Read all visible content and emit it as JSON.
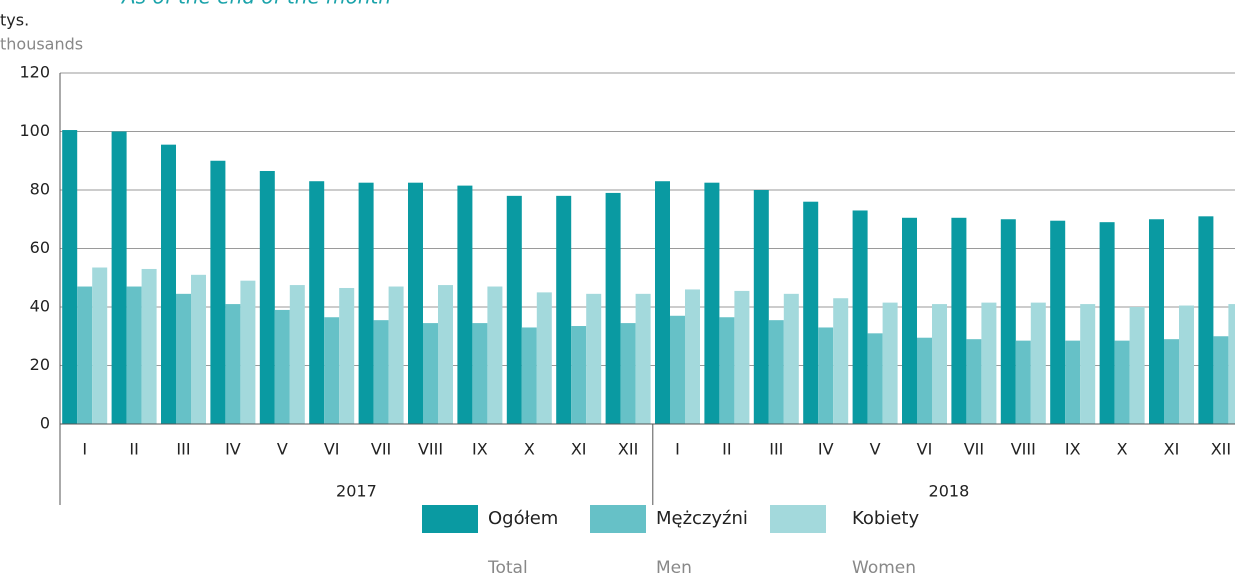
{
  "chart_data": {
    "type": "bar",
    "subtitle": "As of the end of the month",
    "y_label": "tys.",
    "y_label_en": "thousands",
    "categories": [
      "I",
      "II",
      "III",
      "IV",
      "V",
      "VI",
      "VII",
      "VIII",
      "IX",
      "X",
      "XI",
      "XII",
      "I",
      "II",
      "III",
      "IV",
      "V",
      "VI",
      "VII",
      "VIII",
      "IX",
      "X",
      "XI",
      "XII"
    ],
    "year_groups": [
      "2017",
      "2018"
    ],
    "series": [
      {
        "name": "Ogółem",
        "name_en": "Total",
        "color": "#0a9aa2",
        "values": [
          100.5,
          100,
          95.5,
          90,
          86.5,
          83,
          82.5,
          82.5,
          81.5,
          78,
          78,
          79,
          83,
          82.5,
          80,
          76,
          73,
          70.5,
          70.5,
          70,
          69.5,
          69,
          70,
          71
        ]
      },
      {
        "name": "Mężczyźni",
        "name_en": "Men",
        "color": "#66c1c7",
        "values": [
          47,
          47,
          44.5,
          41,
          39,
          36.5,
          35.5,
          34.5,
          34.5,
          33,
          33.5,
          34.5,
          37,
          36.5,
          35.5,
          33,
          31,
          29.5,
          29,
          28.5,
          28.5,
          28.5,
          29,
          30
        ]
      },
      {
        "name": "Kobiety",
        "name_en": "Women",
        "color": "#a3d9dc",
        "values": [
          53.5,
          53,
          51,
          49,
          47.5,
          46.5,
          47,
          47.5,
          47,
          45,
          44.5,
          44.5,
          46,
          45.5,
          44.5,
          43,
          41.5,
          41,
          41.5,
          41.5,
          41,
          40,
          40.5,
          41
        ]
      }
    ],
    "ylim": [
      0,
      120
    ],
    "yticks": [
      0,
      20,
      40,
      60,
      80,
      100,
      120
    ],
    "grid": true
  }
}
